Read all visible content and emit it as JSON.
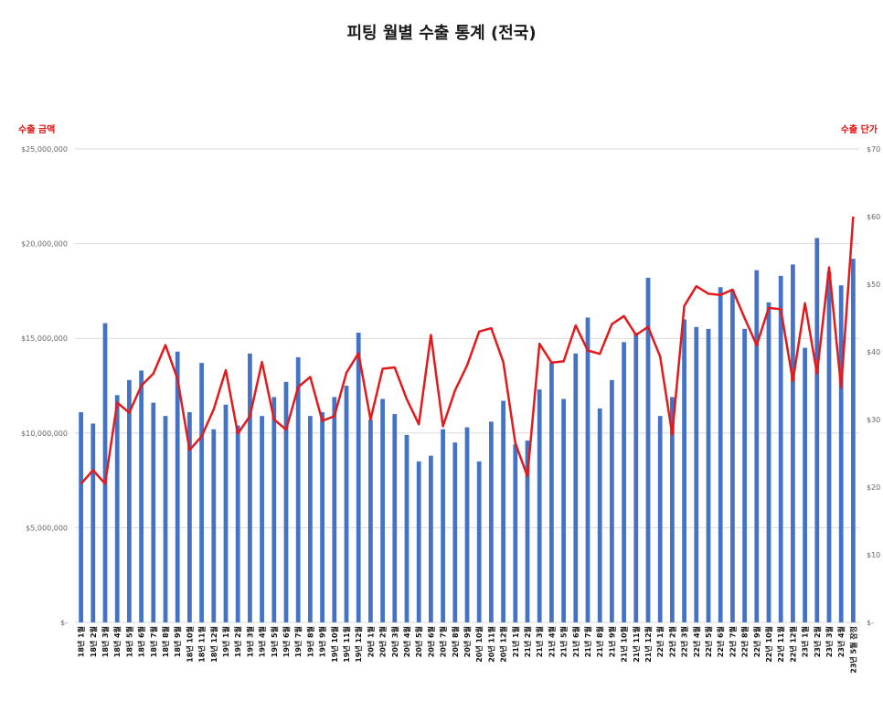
{
  "chart_data": {
    "type": "bar",
    "title": "피팅 월별 수출 통계 (전국)",
    "y_left_title": "수출 금액",
    "y_right_title": "수출 단가",
    "ylim_left": [
      0,
      25000000
    ],
    "ylim_right": [
      0,
      70
    ],
    "left_ticks": [
      "$-",
      "$5,000,000",
      "$10,000,000",
      "$15,000,000",
      "$20,000,000",
      "$25,000,000"
    ],
    "right_ticks": [
      "$-",
      "$10",
      "$20",
      "$30",
      "$40",
      "$50",
      "$60",
      "$70"
    ],
    "grid": true,
    "colors": {
      "bars": "#4472c4",
      "line": "#e31a1c",
      "grid": "#d9d9d9"
    },
    "categories": [
      "18년 1월",
      "18년 2월",
      "18년 3월",
      "18년 4월",
      "18년 5월",
      "18년 6월",
      "18년 7월",
      "18년 8월",
      "18년 9월",
      "18년 10월",
      "18년 11월",
      "18년 12월",
      "19년 1월",
      "19년 2월",
      "19년 3월",
      "19년 4월",
      "19년 5월",
      "19년 6월",
      "19년 7월",
      "19년 8월",
      "19년 9월",
      "19년 10월",
      "19년 11월",
      "19년 12월",
      "20년 1월",
      "20년 2월",
      "20년 3월",
      "20년 4월",
      "20년 5월",
      "20년 6월",
      "20년 7월",
      "20년 8월",
      "20년 9월",
      "20년 10월",
      "20년 11월",
      "20년 12월",
      "21년 1월",
      "21년 2월",
      "21년 3월",
      "21년 4월",
      "21년 5월",
      "21년 6월",
      "21년 7월",
      "21년 8월",
      "21년 9월",
      "21년 10월",
      "21년 11월",
      "21년 12월",
      "22년 1월",
      "22년 2월",
      "22년 3월",
      "22년 4월",
      "22년 5월",
      "22년 6월",
      "22년 7월",
      "22년 8월",
      "22년 9월",
      "22년 10월",
      "22년 11월",
      "22년 12월",
      "23년 1월",
      "23년 2월",
      "23년 3월",
      "23년 4월",
      "23년 5월 잠정"
    ],
    "series": [
      {
        "kind": "bar",
        "axis": "left",
        "values": [
          11100000,
          10500000,
          15800000,
          12000000,
          12800000,
          13300000,
          11600000,
          10900000,
          14300000,
          11100000,
          13700000,
          10200000,
          11500000,
          10400000,
          14200000,
          10900000,
          11900000,
          12700000,
          14000000,
          10900000,
          11100000,
          11900000,
          12500000,
          15300000,
          10700000,
          11800000,
          11000000,
          9900000,
          8500000,
          8800000,
          10200000,
          9500000,
          10300000,
          8500000,
          10600000,
          11700000,
          9400000,
          9600000,
          12300000,
          13700000,
          11800000,
          14200000,
          16100000,
          11300000,
          12800000,
          14800000,
          15300000,
          18200000,
          10900000,
          11900000,
          16000000,
          15600000,
          15500000,
          17700000,
          17500000,
          15500000,
          18600000,
          16900000,
          18300000,
          18900000,
          14500000,
          20300000,
          18500000,
          17800000,
          19200000
        ]
      },
      {
        "kind": "line",
        "axis": "right",
        "values": [
          20.5,
          22.5,
          20.5,
          32.5,
          31.0,
          35.0,
          36.8,
          41.0,
          36.0,
          25.5,
          27.5,
          31.5,
          37.3,
          27.9,
          30.5,
          38.5,
          30.0,
          28.5,
          34.8,
          36.3,
          29.8,
          30.5,
          36.9,
          39.8,
          30.0,
          37.5,
          37.7,
          33.0,
          29.3,
          42.5,
          29.0,
          34.3,
          38.0,
          43.0,
          43.5,
          38.5,
          26.5,
          21.6,
          41.2,
          38.4,
          38.6,
          43.9,
          40.2,
          39.7,
          44.1,
          45.3,
          42.5,
          43.7,
          39.3,
          27.8,
          46.8,
          49.7,
          48.6,
          48.4,
          49.2,
          45.0,
          41.0,
          46.5,
          46.3,
          35.7,
          47.2,
          36.8,
          52.5,
          34.7,
          60.0
        ]
      }
    ]
  }
}
